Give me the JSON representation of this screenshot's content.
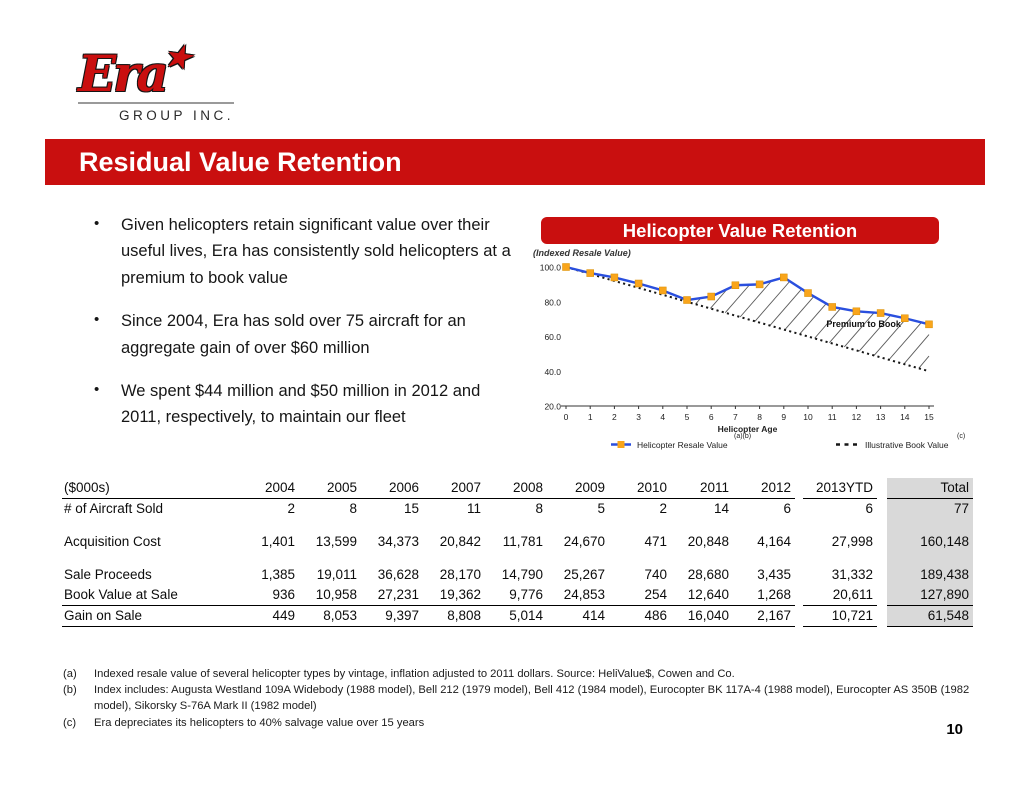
{
  "logo": {
    "brand": "Era",
    "star": "★",
    "subtitle": "GROUP INC."
  },
  "title_banner": "Residual Value Retention",
  "bullets": [
    "Given helicopters retain significant value over their useful lives, Era has consistently sold helicopters at a premium to book value",
    "Since 2004, Era has sold over 75 aircraft for an aggregate gain of over $60 million",
    "We spent $44 million and $50 million in 2012 and 2011, respectively, to maintain our fleet"
  ],
  "chart": {
    "header": "Helicopter Value Retention",
    "subtitle": "(Indexed Resale Value)",
    "legend": [
      {
        "label": "Helicopter Resale Value",
        "superscript": "(a)(b)"
      },
      {
        "label": "Illustrative Book Value",
        "superscript": "(c)"
      }
    ]
  },
  "chart_data": {
    "type": "line",
    "title": "Helicopter Value Retention",
    "subtitle": "(Indexed Resale Value)",
    "xlabel": "Helicopter Age",
    "ylabel": "",
    "x": [
      0,
      1,
      2,
      3,
      4,
      5,
      6,
      7,
      8,
      9,
      10,
      11,
      12,
      13,
      14,
      15
    ],
    "series": [
      {
        "name": "Helicopter Resale Value",
        "superscript": "(a)(b)",
        "style": "solid",
        "color": "#2A4FDE",
        "marker": "square",
        "marker_color": "#F9A51B",
        "values": [
          100,
          96.5,
          94,
          90.5,
          86.5,
          81,
          83,
          89.5,
          90,
          94,
          85,
          77,
          74.5,
          73.5,
          70.5,
          67
        ]
      },
      {
        "name": "Illustrative Book Value",
        "superscript": "(c)",
        "style": "dotted",
        "color": "#161616",
        "values": [
          100,
          96,
          92,
          88,
          84,
          80,
          76,
          72,
          68,
          64,
          60,
          56,
          52,
          48,
          44,
          40
        ]
      }
    ],
    "ylim": [
      20,
      100
    ],
    "yticks": [
      20,
      40,
      60,
      80,
      100
    ],
    "grid": false,
    "legend_position": "bottom",
    "annotation": {
      "text": "Premium to Book",
      "x": 12.3,
      "y": 65.5
    },
    "hatch_region": "between series, ages ~5.4 to 15"
  },
  "table": {
    "unit_label": "($000s)",
    "columns": [
      "2004",
      "2005",
      "2006",
      "2007",
      "2008",
      "2009",
      "2010",
      "2011",
      "2012",
      "2013YTD",
      "Total"
    ],
    "rows": [
      {
        "label": "# of Aircraft Sold",
        "values": [
          "2",
          "8",
          "15",
          "11",
          "8",
          "5",
          "2",
          "14",
          "6",
          "6",
          "77"
        ]
      },
      {
        "type": "spacer"
      },
      {
        "label": "Acquisition Cost",
        "values": [
          "1,401",
          "13,599",
          "34,373",
          "20,842",
          "11,781",
          "24,670",
          "471",
          "20,848",
          "4,164",
          "27,998",
          "160,148"
        ]
      },
      {
        "type": "spacer"
      },
      {
        "label": "Sale Proceeds",
        "values": [
          "1,385",
          "19,011",
          "36,628",
          "28,170",
          "14,790",
          "25,267",
          "740",
          "28,680",
          "3,435",
          "31,332",
          "189,438"
        ]
      },
      {
        "label": "Book Value at Sale",
        "values": [
          "936",
          "10,958",
          "27,231",
          "19,362",
          "9,776",
          "24,853",
          "254",
          "12,640",
          "1,268",
          "20,611",
          "127,890"
        ]
      },
      {
        "label": "Gain on Sale",
        "gain": true,
        "values": [
          "449",
          "8,053",
          "9,397",
          "8,808",
          "5,014",
          "414",
          "486",
          "16,040",
          "2,167",
          "10,721",
          "61,548"
        ]
      }
    ]
  },
  "footnotes": [
    {
      "marker": "(a)",
      "text": "Indexed resale value of several helicopter types by vintage, inflation adjusted to 2011 dollars. Source: HeliValue$, Cowen and Co."
    },
    {
      "marker": "(b)",
      "text": "Index includes:  Augusta Westland 109A Widebody (1988 model), Bell 212 (1979 model), Bell 412 (1984 model), Eurocopter BK 117A-4 (1988 model), Eurocopter AS 350B (1982 model), Sikorsky S-76A Mark II (1982 model)"
    },
    {
      "marker": "(c)",
      "text": "Era depreciates its helicopters to 40% salvage value over 15 years"
    }
  ],
  "page_number": "10",
  "colors": {
    "brand_red": "#C90F0F",
    "line_blue": "#2A4FDE",
    "marker_orange": "#F9A51B",
    "total_column_bg": "#D9D9D9",
    "hatch_gray": "#5a5a5a"
  }
}
